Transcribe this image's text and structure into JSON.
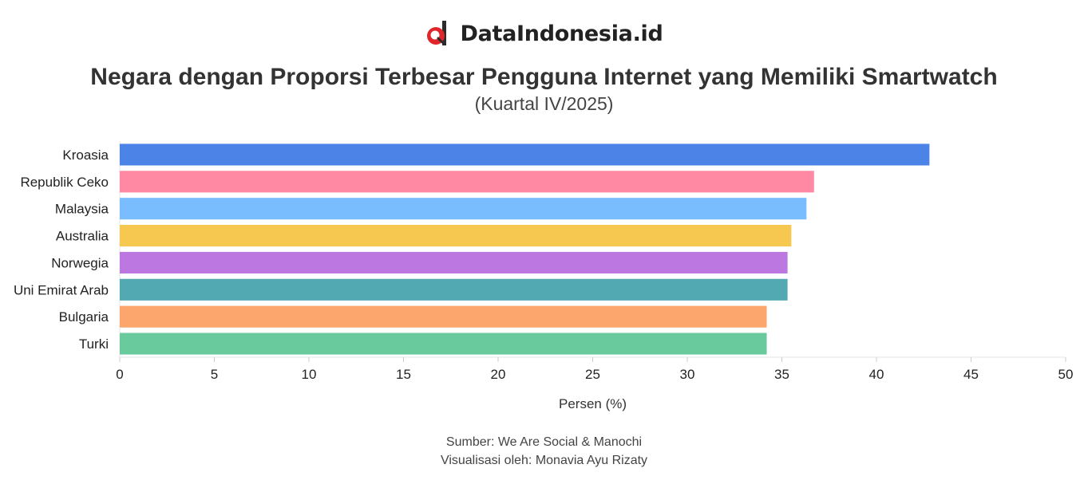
{
  "brand": {
    "name": "DataIndonesia.id",
    "colors": {
      "red": "#e0262a",
      "dark": "#2b2b2b"
    }
  },
  "chart_data": {
    "type": "bar",
    "orientation": "horizontal",
    "title": "Negara dengan Proporsi Terbesar Pengguna Internet yang Memiliki Smartwatch",
    "subtitle": "(Kuartal IV/2025)",
    "categories": [
      "Kroasia",
      "Republik Ceko",
      "Malaysia",
      "Australia",
      "Norwegia",
      "Uni Emirat Arab",
      "Bulgaria",
      "Turki"
    ],
    "values": [
      42.8,
      36.7,
      36.3,
      35.5,
      35.3,
      35.3,
      34.2,
      34.2
    ],
    "colors": [
      "#4c83e6",
      "#ff88a3",
      "#79bdff",
      "#f6c84f",
      "#bd77e0",
      "#52a9b1",
      "#fca66d",
      "#69ca9d"
    ],
    "xlabel": "Persen (%)",
    "ylabel": "",
    "xlim": [
      0,
      50
    ],
    "xticks": [
      0,
      5,
      10,
      15,
      20,
      25,
      30,
      35,
      40,
      45,
      50
    ],
    "grid": false,
    "legend": "none"
  },
  "footer": {
    "source": "Sumber: We Are Social & Manochi",
    "credit": "Visualisasi oleh: Monavia Ayu Rizaty"
  }
}
